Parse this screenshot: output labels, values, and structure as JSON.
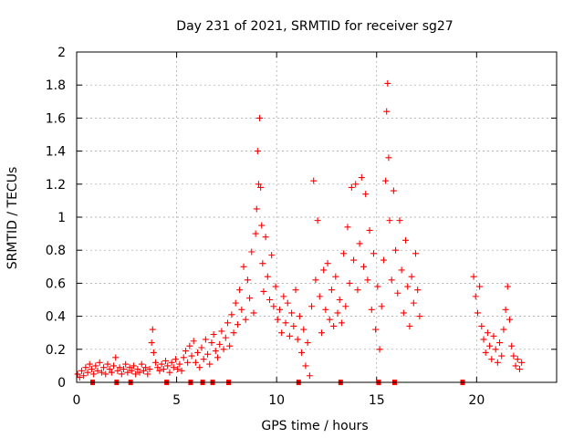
{
  "chart_data": {
    "type": "scatter",
    "title": "Day 231 of 2021, SRMTID for receiver sg27",
    "xlabel": "GPS time / hours",
    "ylabel": "SRMTID / TECUs",
    "xlim": [
      0,
      24
    ],
    "ylim": [
      0,
      2
    ],
    "xticks": [
      0,
      5,
      10,
      15,
      20
    ],
    "xtick_labels": [
      "0",
      "5",
      "10",
      "15",
      "20"
    ],
    "yticks": [
      0,
      0.2,
      0.4,
      0.6,
      0.8,
      1,
      1.2,
      1.4,
      1.6,
      1.8,
      2
    ],
    "ytick_labels": [
      "0",
      "0.2",
      "0.4",
      "0.6",
      "0.8",
      "1",
      "1.2",
      "1.4",
      "1.6",
      "1.8",
      "2"
    ],
    "grid": true,
    "marker": "+",
    "marker_color": "#ff0000",
    "series": [
      {
        "name": "SRMTID",
        "points": [
          [
            0.05,
            0.05
          ],
          [
            0.15,
            0.03
          ],
          [
            0.25,
            0.07
          ],
          [
            0.35,
            0.04
          ],
          [
            0.45,
            0.09
          ],
          [
            0.55,
            0.06
          ],
          [
            0.65,
            0.11
          ],
          [
            0.75,
            0.08
          ],
          [
            0.85,
            0.05
          ],
          [
            0.95,
            0.1
          ],
          [
            1.05,
            0.07
          ],
          [
            1.15,
            0.12
          ],
          [
            1.25,
            0.06
          ],
          [
            1.35,
            0.09
          ],
          [
            1.45,
            0.05
          ],
          [
            1.55,
            0.11
          ],
          [
            1.65,
            0.08
          ],
          [
            1.75,
            0.06
          ],
          [
            1.85,
            0.1
          ],
          [
            1.95,
            0.15
          ],
          [
            2.05,
            0.07
          ],
          [
            2.15,
            0.09
          ],
          [
            2.25,
            0.05
          ],
          [
            2.35,
            0.08
          ],
          [
            2.45,
            0.11
          ],
          [
            2.55,
            0.06
          ],
          [
            2.65,
            0.09
          ],
          [
            2.75,
            0.07
          ],
          [
            2.85,
            0.1
          ],
          [
            2.95,
            0.05
          ],
          [
            3.05,
            0.08
          ],
          [
            3.15,
            0.06
          ],
          [
            3.25,
            0.11
          ],
          [
            3.35,
            0.07
          ],
          [
            3.45,
            0.09
          ],
          [
            3.55,
            0.05
          ],
          [
            3.65,
            0.08
          ],
          [
            3.75,
            0.24
          ],
          [
            3.8,
            0.32
          ],
          [
            3.85,
            0.18
          ],
          [
            3.95,
            0.12
          ],
          [
            4.05,
            0.09
          ],
          [
            4.15,
            0.07
          ],
          [
            4.25,
            0.11
          ],
          [
            4.35,
            0.08
          ],
          [
            4.45,
            0.13
          ],
          [
            4.55,
            0.1
          ],
          [
            4.65,
            0.06
          ],
          [
            4.75,
            0.12
          ],
          [
            4.85,
            0.09
          ],
          [
            4.95,
            0.14
          ],
          [
            5.05,
            0.08
          ],
          [
            5.15,
            0.11
          ],
          [
            5.25,
            0.07
          ],
          [
            5.35,
            0.15
          ],
          [
            5.45,
            0.19
          ],
          [
            5.55,
            0.12
          ],
          [
            5.65,
            0.22
          ],
          [
            5.75,
            0.16
          ],
          [
            5.85,
            0.25
          ],
          [
            5.95,
            0.12
          ],
          [
            6.05,
            0.18
          ],
          [
            6.15,
            0.09
          ],
          [
            6.25,
            0.21
          ],
          [
            6.35,
            0.14
          ],
          [
            6.45,
            0.26
          ],
          [
            6.55,
            0.17
          ],
          [
            6.65,
            0.11
          ],
          [
            6.75,
            0.24
          ],
          [
            6.85,
            0.29
          ],
          [
            6.95,
            0.19
          ],
          [
            7.05,
            0.15
          ],
          [
            7.15,
            0.23
          ],
          [
            7.25,
            0.31
          ],
          [
            7.35,
            0.2
          ],
          [
            7.45,
            0.27
          ],
          [
            7.55,
            0.36
          ],
          [
            7.65,
            0.22
          ],
          [
            7.75,
            0.41
          ],
          [
            7.85,
            0.3
          ],
          [
            7.95,
            0.48
          ],
          [
            8.05,
            0.35
          ],
          [
            8.15,
            0.56
          ],
          [
            8.25,
            0.44
          ],
          [
            8.35,
            0.7
          ],
          [
            8.45,
            0.38
          ],
          [
            8.55,
            0.62
          ],
          [
            8.65,
            0.51
          ],
          [
            8.75,
            0.79
          ],
          [
            8.85,
            0.42
          ],
          [
            8.95,
            0.9
          ],
          [
            9.0,
            1.05
          ],
          [
            9.05,
            1.4
          ],
          [
            9.1,
            1.2
          ],
          [
            9.15,
            1.6
          ],
          [
            9.2,
            1.18
          ],
          [
            9.25,
            0.95
          ],
          [
            9.3,
            0.72
          ],
          [
            9.35,
            0.55
          ],
          [
            9.45,
            0.88
          ],
          [
            9.55,
            0.64
          ],
          [
            9.65,
            0.5
          ],
          [
            9.75,
            0.77
          ],
          [
            9.85,
            0.46
          ],
          [
            9.95,
            0.58
          ],
          [
            10.05,
            0.38
          ],
          [
            10.15,
            0.44
          ],
          [
            10.25,
            0.3
          ],
          [
            10.35,
            0.52
          ],
          [
            10.45,
            0.36
          ],
          [
            10.55,
            0.48
          ],
          [
            10.65,
            0.28
          ],
          [
            10.75,
            0.42
          ],
          [
            10.85,
            0.34
          ],
          [
            10.95,
            0.56
          ],
          [
            11.05,
            0.26
          ],
          [
            11.15,
            0.4
          ],
          [
            11.25,
            0.18
          ],
          [
            11.35,
            0.32
          ],
          [
            11.45,
            0.1
          ],
          [
            11.55,
            0.24
          ],
          [
            11.65,
            0.04
          ],
          [
            11.75,
            0.46
          ],
          [
            11.85,
            1.22
          ],
          [
            11.95,
            0.62
          ],
          [
            12.05,
            0.98
          ],
          [
            12.15,
            0.52
          ],
          [
            12.25,
            0.3
          ],
          [
            12.35,
            0.68
          ],
          [
            12.45,
            0.44
          ],
          [
            12.55,
            0.72
          ],
          [
            12.65,
            0.38
          ],
          [
            12.75,
            0.56
          ],
          [
            12.85,
            0.34
          ],
          [
            12.95,
            0.64
          ],
          [
            13.05,
            0.42
          ],
          [
            13.15,
            0.5
          ],
          [
            13.25,
            0.36
          ],
          [
            13.35,
            0.78
          ],
          [
            13.45,
            0.46
          ],
          [
            13.55,
            0.94
          ],
          [
            13.65,
            0.6
          ],
          [
            13.75,
            1.18
          ],
          [
            13.85,
            0.74
          ],
          [
            13.95,
            1.2
          ],
          [
            14.05,
            0.56
          ],
          [
            14.15,
            0.84
          ],
          [
            14.25,
            1.24
          ],
          [
            14.35,
            0.7
          ],
          [
            14.45,
            1.14
          ],
          [
            14.55,
            0.62
          ],
          [
            14.65,
            0.92
          ],
          [
            14.75,
            0.44
          ],
          [
            14.85,
            0.78
          ],
          [
            14.95,
            0.32
          ],
          [
            15.05,
            0.58
          ],
          [
            15.15,
            0.2
          ],
          [
            15.25,
            0.46
          ],
          [
            15.35,
            0.74
          ],
          [
            15.45,
            1.22
          ],
          [
            15.5,
            1.64
          ],
          [
            15.55,
            1.81
          ],
          [
            15.6,
            1.36
          ],
          [
            15.65,
            0.98
          ],
          [
            15.75,
            0.62
          ],
          [
            15.85,
            1.16
          ],
          [
            15.95,
            0.8
          ],
          [
            16.05,
            0.54
          ],
          [
            16.15,
            0.98
          ],
          [
            16.25,
            0.68
          ],
          [
            16.35,
            0.42
          ],
          [
            16.45,
            0.86
          ],
          [
            16.55,
            0.58
          ],
          [
            16.65,
            0.34
          ],
          [
            16.75,
            0.64
          ],
          [
            16.85,
            0.48
          ],
          [
            16.95,
            0.78
          ],
          [
            17.05,
            0.56
          ],
          [
            17.15,
            0.4
          ],
          [
            19.85,
            0.64
          ],
          [
            19.95,
            0.52
          ],
          [
            20.05,
            0.42
          ],
          [
            20.15,
            0.58
          ],
          [
            20.25,
            0.34
          ],
          [
            20.35,
            0.26
          ],
          [
            20.45,
            0.18
          ],
          [
            20.55,
            0.3
          ],
          [
            20.65,
            0.22
          ],
          [
            20.75,
            0.14
          ],
          [
            20.85,
            0.28
          ],
          [
            20.95,
            0.2
          ],
          [
            21.05,
            0.12
          ],
          [
            21.15,
            0.24
          ],
          [
            21.25,
            0.16
          ],
          [
            21.35,
            0.32
          ],
          [
            21.45,
            0.44
          ],
          [
            21.55,
            0.58
          ],
          [
            21.65,
            0.38
          ],
          [
            21.75,
            0.22
          ],
          [
            21.85,
            0.16
          ],
          [
            21.95,
            0.1
          ],
          [
            22.05,
            0.14
          ],
          [
            22.15,
            0.08
          ],
          [
            22.25,
            0.12
          ]
        ],
        "zeros": [
          0.8,
          2.0,
          2.7,
          4.5,
          5.7,
          6.3,
          6.8,
          7.6,
          11.1,
          13.2,
          15.1,
          15.9,
          19.3
        ]
      }
    ]
  }
}
